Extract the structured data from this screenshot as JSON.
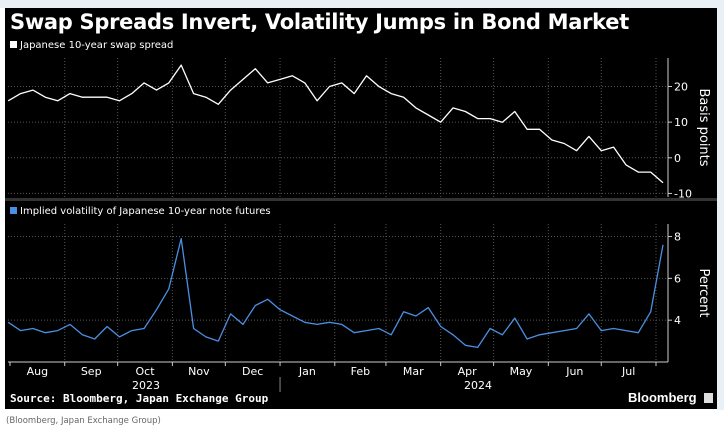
{
  "title": "Swap Spreads Invert, Volatility Jumps in Bond Market",
  "source": "Source: Bloomberg, Japan Exchange Group",
  "brand": "Bloomberg",
  "caption": "(Bloomberg, Japan Exchange Group)",
  "colors": {
    "spread": "#ffffff",
    "vol": "#4a90e2",
    "background": "#000000"
  },
  "chart_data": [
    {
      "type": "line",
      "legend": "Japanese 10-year swap spread",
      "ylabel": "Basis points",
      "ylim": [
        -11,
        28
      ],
      "yticks": [
        "20",
        "10",
        "0",
        "-10"
      ],
      "ytick_values": [
        20,
        10,
        0,
        -10
      ],
      "grid": true,
      "x_start": "2023-07-31",
      "interval_days": 7,
      "values": [
        16,
        18,
        19,
        17,
        16,
        18,
        17,
        17,
        17,
        16,
        18,
        21,
        19,
        21,
        26,
        18,
        17,
        15,
        19,
        22,
        25,
        21,
        22,
        23,
        21,
        16,
        20,
        21,
        18,
        23,
        20,
        18,
        17,
        14,
        12,
        10,
        14,
        13,
        11,
        11,
        10,
        13,
        8,
        8,
        5,
        4,
        2,
        6,
        2,
        3,
        -2,
        -4,
        -4,
        -7
      ]
    },
    {
      "type": "line",
      "legend": "Implied volatility of Japanese 10-year note futures",
      "ylabel": "Percent",
      "ylim": [
        2,
        8.6
      ],
      "yticks": [
        "8",
        "6",
        "4"
      ],
      "ytick_values": [
        8,
        6,
        4
      ],
      "grid": true,
      "x_start": "2023-07-31",
      "interval_days": 7,
      "values": [
        3.9,
        3.5,
        3.6,
        3.4,
        3.5,
        3.8,
        3.3,
        3.1,
        3.7,
        3.2,
        3.5,
        3.6,
        4.5,
        5.5,
        7.9,
        3.6,
        3.2,
        3.0,
        4.3,
        3.8,
        4.7,
        5.0,
        4.5,
        4.2,
        3.9,
        3.8,
        3.9,
        3.8,
        3.4,
        3.5,
        3.6,
        3.3,
        4.4,
        4.2,
        4.6,
        3.7,
        3.3,
        2.8,
        2.7,
        3.6,
        3.3,
        4.1,
        3.1,
        3.3,
        3.4,
        3.5,
        3.6,
        4.3,
        3.5,
        3.6,
        3.5,
        3.4,
        4.4,
        7.6
      ]
    }
  ],
  "x_axis": {
    "months": [
      "Aug",
      "Sep",
      "Oct",
      "Nov",
      "Dec",
      "Jan",
      "Feb",
      "Mar",
      "Apr",
      "May",
      "Jun",
      "Jul"
    ],
    "years": [
      "2023",
      "2024"
    ]
  }
}
